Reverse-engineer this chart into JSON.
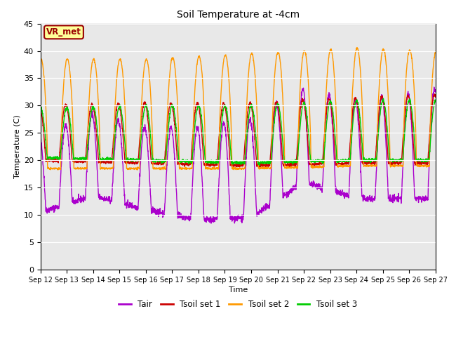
{
  "title": "Soil Temperature at -4cm",
  "xlabel": "Time",
  "ylabel": "Temperature (C)",
  "ylim": [
    0,
    45
  ],
  "yticks": [
    0,
    5,
    10,
    15,
    20,
    25,
    30,
    35,
    40,
    45
  ],
  "colors": {
    "Tair": "#aa00cc",
    "Tsoil_set1": "#cc0000",
    "Tsoil_set2": "#ff9900",
    "Tsoil_set3": "#00cc00"
  },
  "legend_labels": [
    "Tair",
    "Tsoil set 1",
    "Tsoil set 2",
    "Tsoil set 3"
  ],
  "annotation_text": "VR_met",
  "annotation_color": "#990000",
  "annotation_bg": "#ffff99",
  "plot_bg_color": "#e8e8e8",
  "fig_bg_color": "#ffffff",
  "n_days": 15,
  "x_tick_labels": [
    "Sep 12",
    "Sep 13",
    "Sep 14",
    "Sep 15",
    "Sep 16",
    "Sep 17",
    "Sep 18",
    "Sep 19",
    "Sep 20",
    "Sep 21",
    "Sep 22",
    "Sep 23",
    "Sep 24",
    "Sep 25",
    "Sep 26",
    "Sep 27"
  ]
}
